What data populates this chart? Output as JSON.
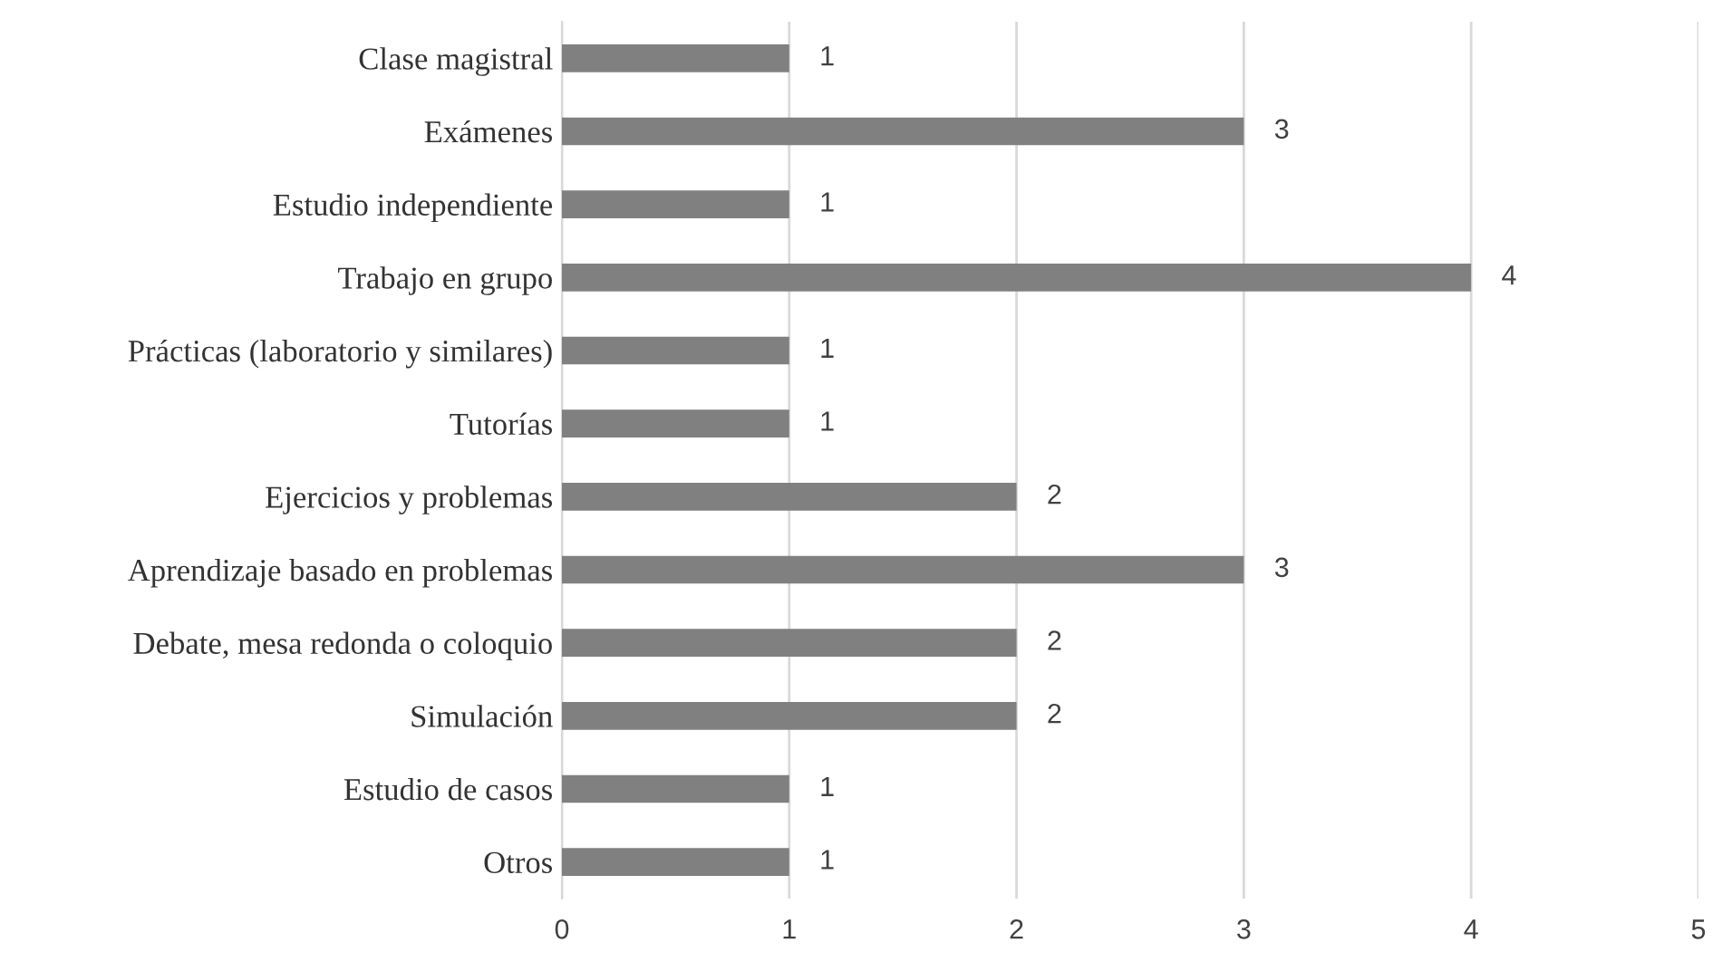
{
  "chart_data": {
    "type": "bar",
    "orientation": "horizontal",
    "categories": [
      "Clase magistral",
      "Exámenes",
      "Estudio independiente",
      "Trabajo en grupo",
      "Prácticas (laboratorio y similares)",
      "Tutorías",
      "Ejercicios y problemas",
      "Aprendizaje basado en problemas",
      "Debate, mesa redonda o coloquio",
      "Simulación",
      "Estudio de casos",
      "Otros"
    ],
    "values": [
      1,
      3,
      1,
      4,
      1,
      1,
      2,
      3,
      2,
      2,
      1,
      1
    ],
    "color": "#808080",
    "xlim": [
      0,
      5
    ],
    "xticks": [
      0,
      1,
      2,
      3,
      4,
      5
    ],
    "grid": "x",
    "data_labels": true,
    "legend": false
  }
}
